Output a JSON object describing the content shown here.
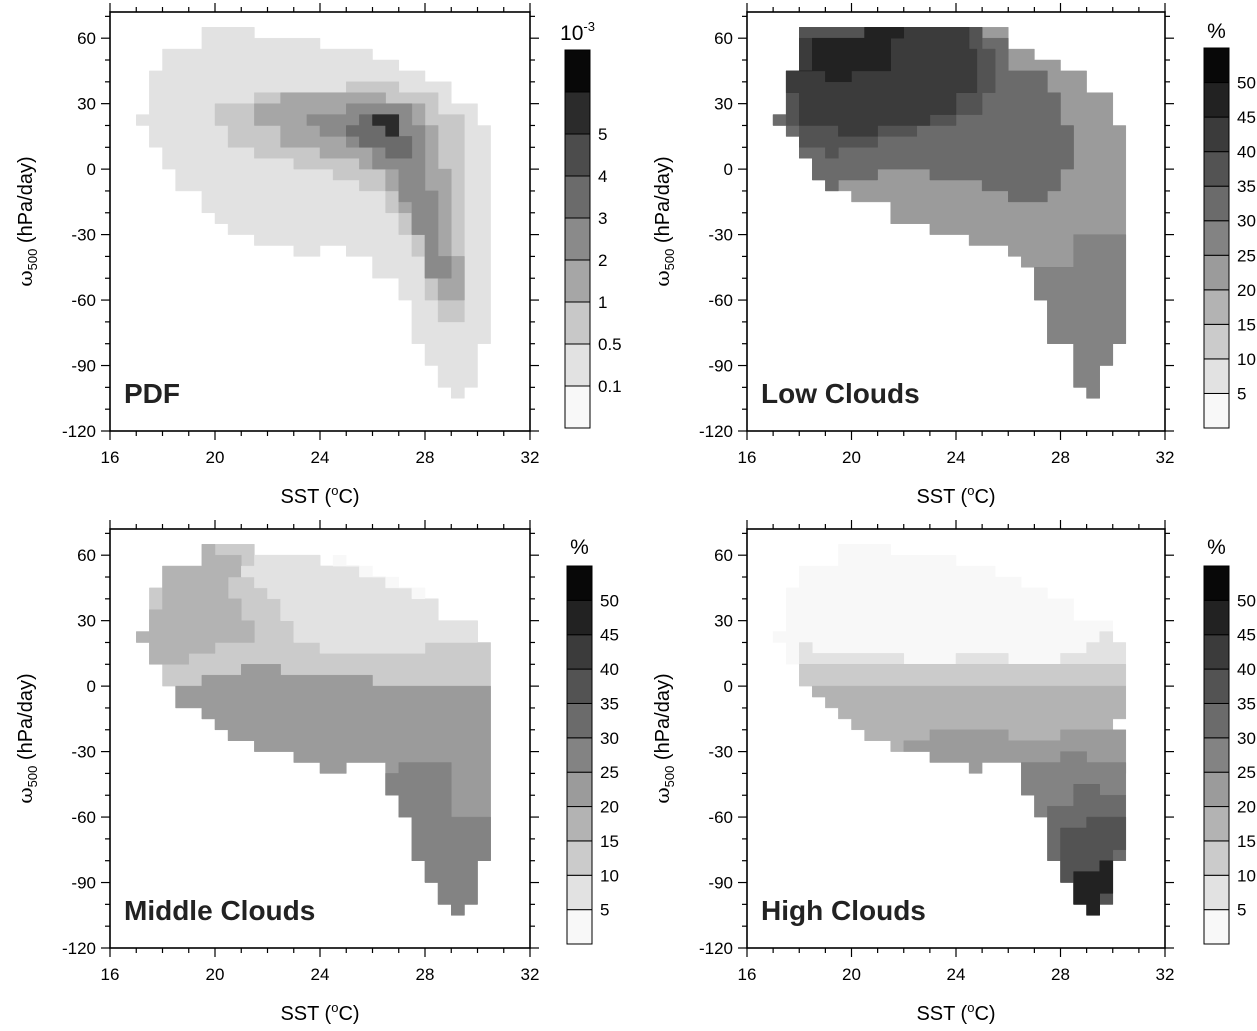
{
  "figure": {
    "background": "#ffffff",
    "panels": [
      {
        "label": "PDF",
        "xlabel_main": "SST (",
        "xlabel_sup": "o",
        "xlabel_tail": "C)",
        "ylabel_main": "ω",
        "ylabel_sub": "500",
        "ylabel_tail": " (hPa/day)",
        "colorbar": {
          "unit_base": "10",
          "unit_exp": "-3",
          "labels": [
            "0.1",
            "0.5",
            "1",
            "2",
            "3",
            "4",
            "5"
          ],
          "colors": [
            "#f8f8f8",
            "#e2e2e2",
            "#c8c8c8",
            "#a6a6a6",
            "#8a8a8a",
            "#6b6b6b",
            "#4c4c4c",
            "#2b2b2b",
            "#080808"
          ]
        }
      },
      {
        "label": "Low Clouds",
        "xlabel_main": "SST (",
        "xlabel_sup": "o",
        "xlabel_tail": "C)",
        "ylabel_main": "ω",
        "ylabel_sub": "500",
        "ylabel_tail": " (hPa/day)",
        "colorbar": {
          "unit_base": "%",
          "unit_exp": "",
          "labels": [
            "5",
            "10",
            "15",
            "20",
            "25",
            "30",
            "35",
            "40",
            "45",
            "50"
          ],
          "colors": [
            "#f8f8f8",
            "#e2e2e2",
            "#cbcbcb",
            "#b3b3b3",
            "#9b9b9b",
            "#838383",
            "#6b6b6b",
            "#535353",
            "#3b3b3b",
            "#222222",
            "#080808"
          ]
        }
      },
      {
        "label": "Middle Clouds",
        "xlabel_main": "SST (",
        "xlabel_sup": "o",
        "xlabel_tail": "C)",
        "ylabel_main": "ω",
        "ylabel_sub": "500",
        "ylabel_tail": " (hPa/day)",
        "colorbar": {
          "unit_base": "%",
          "unit_exp": "",
          "labels": [
            "5",
            "10",
            "15",
            "20",
            "25",
            "30",
            "35",
            "40",
            "45",
            "50"
          ],
          "colors": [
            "#f8f8f8",
            "#e2e2e2",
            "#cbcbcb",
            "#b3b3b3",
            "#9b9b9b",
            "#838383",
            "#6b6b6b",
            "#535353",
            "#3b3b3b",
            "#222222",
            "#080808"
          ]
        }
      },
      {
        "label": "High Clouds",
        "xlabel_main": "SST (",
        "xlabel_sup": "o",
        "xlabel_tail": "C)",
        "ylabel_main": "ω",
        "ylabel_sub": "500",
        "ylabel_tail": " (hPa/day)",
        "colorbar": {
          "unit_base": "%",
          "unit_exp": "",
          "labels": [
            "5",
            "10",
            "15",
            "20",
            "25",
            "30",
            "35",
            "40",
            "45",
            "50"
          ],
          "colors": [
            "#f8f8f8",
            "#e2e2e2",
            "#cbcbcb",
            "#b3b3b3",
            "#9b9b9b",
            "#838383",
            "#6b6b6b",
            "#535353",
            "#3b3b3b",
            "#222222",
            "#080808"
          ]
        }
      }
    ]
  },
  "chart_data": [
    {
      "type": "heatmap",
      "title": "PDF",
      "xlabel": "SST (oC)",
      "ylabel": "ω500 (hPa/day)",
      "xlim": [
        16,
        32
      ],
      "ylim": [
        -120,
        72
      ],
      "xticks": [
        16,
        20,
        24,
        28,
        32
      ],
      "yticks": [
        -120,
        -90,
        -60,
        -30,
        0,
        30,
        60
      ],
      "color_levels": [
        0.1,
        0.5,
        1,
        2,
        3,
        4,
        5
      ],
      "colorbar_unit": "10-3",
      "grid": false
    },
    {
      "type": "heatmap",
      "title": "Low Clouds",
      "xlabel": "SST (oC)",
      "ylabel": "ω500 (hPa/day)",
      "xlim": [
        16,
        32
      ],
      "ylim": [
        -120,
        72
      ],
      "xticks": [
        16,
        20,
        24,
        28,
        32
      ],
      "yticks": [
        -120,
        -90,
        -60,
        -30,
        0,
        30,
        60
      ],
      "color_levels": [
        5,
        10,
        15,
        20,
        25,
        30,
        35,
        40,
        45,
        50
      ],
      "colorbar_unit": "%",
      "grid": false
    },
    {
      "type": "heatmap",
      "title": "Middle Clouds",
      "xlabel": "SST (oC)",
      "ylabel": "ω500 (hPa/day)",
      "xlim": [
        16,
        32
      ],
      "ylim": [
        -120,
        72
      ],
      "xticks": [
        16,
        20,
        24,
        28,
        32
      ],
      "yticks": [
        -120,
        -90,
        -60,
        -30,
        0,
        30,
        60
      ],
      "color_levels": [
        5,
        10,
        15,
        20,
        25,
        30,
        35,
        40,
        45,
        50
      ],
      "colorbar_unit": "%",
      "grid": false
    },
    {
      "type": "heatmap",
      "title": "High Clouds",
      "xlabel": "SST (oC)",
      "ylabel": "ω500 (hPa/day)",
      "xlim": [
        16,
        32
      ],
      "ylim": [
        -120,
        72
      ],
      "xticks": [
        16,
        20,
        24,
        28,
        32
      ],
      "yticks": [
        -120,
        -90,
        -60,
        -30,
        0,
        30,
        60
      ],
      "color_levels": [
        5,
        10,
        15,
        20,
        25,
        30,
        35,
        40,
        45,
        50
      ],
      "colorbar_unit": "%",
      "grid": false
    }
  ]
}
